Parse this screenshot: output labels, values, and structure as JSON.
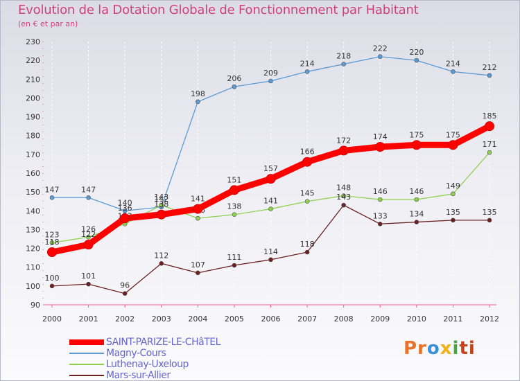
{
  "chart_data": {
    "type": "line",
    "title": "Evolution de la Dotation Globale de Fonctionnement par Habitant",
    "subtitle": "(en € et par an)",
    "xlabel": "",
    "ylabel": "",
    "ylim": [
      90,
      230
    ],
    "yticks": [
      90,
      100,
      110,
      120,
      130,
      140,
      150,
      160,
      170,
      180,
      190,
      200,
      210,
      220,
      230
    ],
    "categories": [
      "2000",
      "2001",
      "2002",
      "2003",
      "2004",
      "2005",
      "2006",
      "2007",
      "2008",
      "2009",
      "2010",
      "2011",
      "2012"
    ],
    "series": [
      {
        "name": "Magny-Cours",
        "color": "#5b9bd5",
        "values": [
          147,
          147,
          140,
          142,
          198,
          206,
          209,
          214,
          218,
          222,
          220,
          214,
          212
        ]
      },
      {
        "name": "Luthenay-Uxeloup",
        "color": "#8fd14f",
        "values": [
          123,
          126,
          133,
          143,
          136,
          138,
          141,
          145,
          148,
          146,
          146,
          149,
          171
        ]
      },
      {
        "name": "Mars-sur-Allier",
        "color": "#6b1f1f",
        "values": [
          100,
          101,
          96,
          112,
          107,
          111,
          114,
          118,
          143,
          133,
          134,
          135,
          135
        ]
      },
      {
        "name": "SAINT-PARIZE-LE-CHâTEL",
        "color": "#ff0000",
        "values": [
          118,
          122,
          136,
          138,
          141,
          151,
          157,
          166,
          172,
          174,
          175,
          175,
          185
        ]
      }
    ],
    "legend": [
      "SAINT-PARIZE-LE-CHâTEL",
      "Magny-Cours",
      "Luthenay-Uxeloup",
      "Mars-sur-Allier"
    ],
    "legend_position": "bottom-left",
    "grid": "vertical"
  },
  "logo": {
    "parts": [
      "Pr",
      "o",
      "x",
      "i",
      "ti"
    ]
  }
}
